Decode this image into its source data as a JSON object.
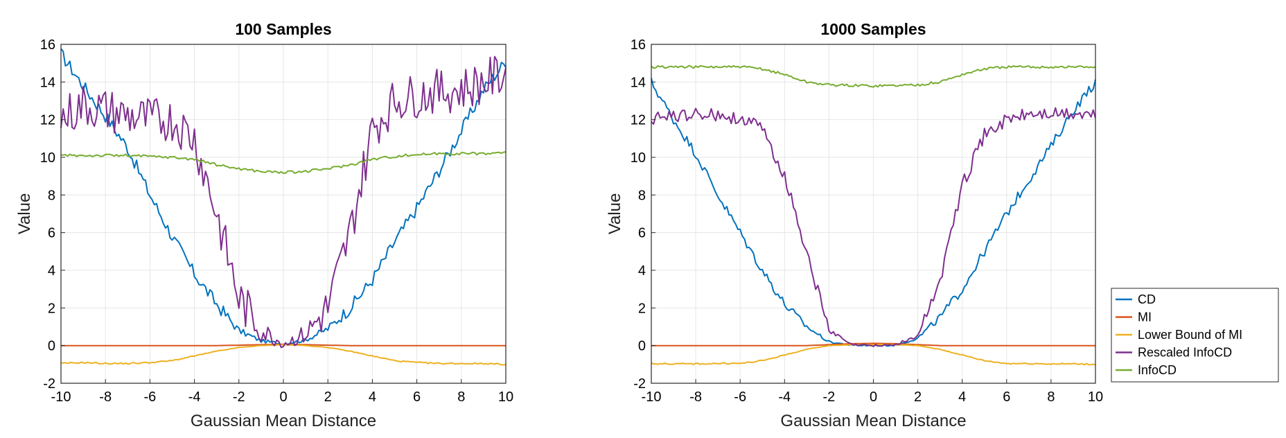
{
  "legend": {
    "placement": "outside-right",
    "entries": [
      {
        "name": "CD",
        "color": "#0072BD"
      },
      {
        "name": "MI",
        "color": "#D95319"
      },
      {
        "name": "Lower Bound of MI",
        "color": "#EDB120"
      },
      {
        "name": "Rescaled InfoCD",
        "color": "#7E2F8E"
      },
      {
        "name": "InfoCD",
        "color": "#77AC30"
      }
    ]
  },
  "chart_data": [
    {
      "type": "line",
      "title": "100 Samples",
      "xlabel": "Gaussian Mean Distance",
      "ylabel": "Value",
      "xlim": [
        -10,
        10
      ],
      "ylim": [
        -2,
        16
      ],
      "xticks": [
        -10,
        -8,
        -6,
        -4,
        -2,
        0,
        2,
        4,
        6,
        8,
        10
      ],
      "yticks": [
        -2,
        0,
        2,
        4,
        6,
        8,
        10,
        12,
        14,
        16
      ],
      "grid": true,
      "x": [
        -10,
        -9,
        -8,
        -7,
        -6,
        -5,
        -4,
        -3,
        -2,
        -1,
        0,
        1,
        2,
        3,
        4,
        5,
        6,
        7,
        8,
        9,
        10
      ],
      "series": [
        {
          "name": "CD",
          "color": "#0072BD",
          "values": [
            15.5,
            13.8,
            12.2,
            10.5,
            8,
            5.8,
            3.8,
            2.2,
            0.8,
            0.25,
            0.1,
            0.3,
            0.9,
            2,
            3.5,
            5.5,
            7.3,
            9.3,
            11.4,
            13.6,
            15.1
          ]
        },
        {
          "name": "MI",
          "color": "#D95319",
          "values": [
            0,
            0,
            0,
            0,
            0,
            0,
            0,
            0,
            0.02,
            0.05,
            0.07,
            0.05,
            0.02,
            0,
            0,
            0,
            0,
            0,
            0,
            0,
            0
          ]
        },
        {
          "name": "Lower Bound of MI",
          "color": "#EDB120",
          "values": [
            -0.95,
            -0.9,
            -0.95,
            -0.95,
            -0.9,
            -0.8,
            -0.55,
            -0.3,
            -0.1,
            0,
            0.05,
            0,
            -0.1,
            -0.3,
            -0.55,
            -0.8,
            -0.9,
            -0.95,
            -0.95,
            -0.95,
            -1
          ]
        },
        {
          "name": "Rescaled InfoCD",
          "color": "#7E2F8E",
          "values": [
            12,
            12.8,
            12.5,
            12.2,
            12,
            12,
            11,
            7,
            2.5,
            0.8,
            0.1,
            0.6,
            2,
            6,
            11.5,
            13,
            13.3,
            13.5,
            13.6,
            14,
            14.5
          ]
        },
        {
          "name": "InfoCD",
          "color": "#77AC30",
          "values": [
            10.1,
            10.1,
            10.1,
            10.1,
            10.05,
            10,
            9.9,
            9.6,
            9.4,
            9.25,
            9.2,
            9.25,
            9.4,
            9.6,
            9.9,
            10.05,
            10.15,
            10.2,
            10.2,
            10.2,
            10.25
          ]
        }
      ]
    },
    {
      "type": "line",
      "title": "1000 Samples",
      "xlabel": "Gaussian Mean Distance",
      "ylabel": "Value",
      "xlim": [
        -10,
        10
      ],
      "ylim": [
        -2,
        16
      ],
      "xticks": [
        -10,
        -8,
        -6,
        -4,
        -2,
        0,
        2,
        4,
        6,
        8,
        10
      ],
      "yticks": [
        -2,
        0,
        2,
        4,
        6,
        8,
        10,
        12,
        14,
        16
      ],
      "grid": true,
      "x": [
        -10,
        -9,
        -8,
        -7,
        -6,
        -5,
        -4,
        -3,
        -2,
        -1,
        0,
        1,
        2,
        3,
        4,
        5,
        6,
        7,
        8,
        9,
        10
      ],
      "series": [
        {
          "name": "CD",
          "color": "#0072BD",
          "values": [
            14,
            12,
            10.2,
            8,
            6,
            4,
            2.2,
            1,
            0.2,
            0.02,
            0,
            0.02,
            0.4,
            1.5,
            3,
            5,
            7,
            8.8,
            10.6,
            12.5,
            14
          ]
        },
        {
          "name": "MI",
          "color": "#D95319",
          "values": [
            0,
            0,
            0,
            0,
            0,
            0,
            0,
            0,
            0.05,
            0.1,
            0.12,
            0.1,
            0.05,
            0,
            0,
            0,
            0,
            0,
            0,
            0,
            0
          ]
        },
        {
          "name": "Lower Bound of MI",
          "color": "#EDB120",
          "values": [
            -0.95,
            -0.97,
            -0.97,
            -0.95,
            -0.95,
            -0.8,
            -0.5,
            -0.2,
            0,
            0.05,
            0.05,
            0.05,
            0,
            -0.2,
            -0.5,
            -0.8,
            -0.95,
            -0.95,
            -0.97,
            -0.97,
            -1
          ]
        },
        {
          "name": "Rescaled InfoCD",
          "color": "#7E2F8E",
          "values": [
            12,
            12.2,
            12.3,
            12.2,
            12.1,
            11.5,
            9,
            5,
            0.8,
            0.05,
            0,
            0.05,
            0.5,
            3.5,
            8.5,
            11.2,
            12,
            12.3,
            12.3,
            12.3,
            12.2
          ]
        },
        {
          "name": "InfoCD",
          "color": "#77AC30",
          "values": [
            14.8,
            14.8,
            14.8,
            14.8,
            14.8,
            14.7,
            14.4,
            14,
            13.85,
            13.82,
            13.8,
            13.82,
            13.85,
            14,
            14.4,
            14.7,
            14.8,
            14.8,
            14.8,
            14.8,
            14.8
          ]
        }
      ]
    }
  ]
}
